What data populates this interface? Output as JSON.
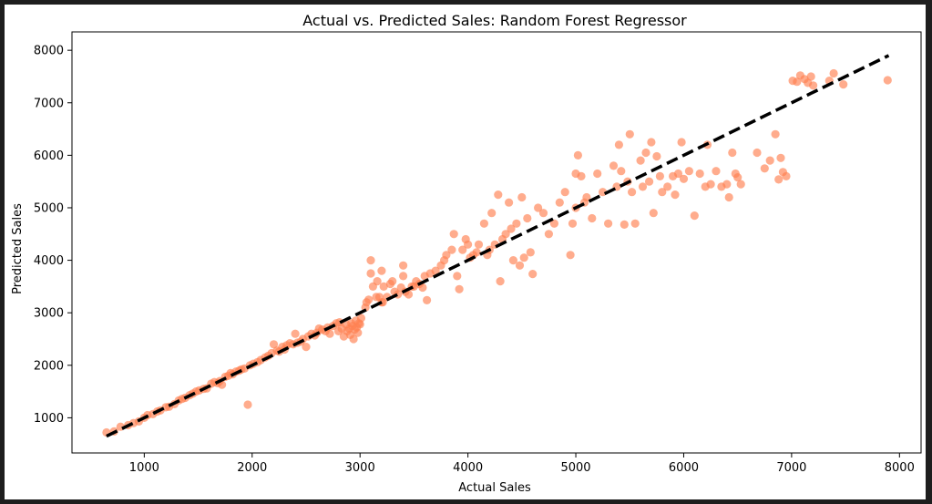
{
  "chart_data": {
    "type": "scatter",
    "title": "Actual vs. Predicted Sales: Random Forest Regressor",
    "xlabel": "Actual Sales",
    "ylabel": "Predicted Sales",
    "xlim": [
      330,
      8200
    ],
    "ylim": [
      330,
      8350
    ],
    "xticks": [
      1000,
      2000,
      3000,
      4000,
      5000,
      6000,
      7000,
      8000
    ],
    "yticks": [
      1000,
      2000,
      3000,
      4000,
      5000,
      6000,
      7000,
      8000
    ],
    "xtick_labels": [
      "1000",
      "2000",
      "3000",
      "4000",
      "5000",
      "6000",
      "7000",
      "8000"
    ],
    "ytick_labels": [
      "1000",
      "2000",
      "3000",
      "4000",
      "5000",
      "6000",
      "7000",
      "8000"
    ],
    "grid": false,
    "point_color": "#ff7f50",
    "point_alpha": 0.65,
    "reference_line": {
      "style": "dashed",
      "color": "#000000",
      "x": [
        650,
        7900
      ],
      "y": [
        650,
        7900
      ]
    },
    "points": [
      [
        650,
        720
      ],
      [
        720,
        740
      ],
      [
        780,
        830
      ],
      [
        850,
        860
      ],
      [
        900,
        900
      ],
      [
        950,
        930
      ],
      [
        1000,
        1000
      ],
      [
        1030,
        1050
      ],
      [
        1080,
        1070
      ],
      [
        1120,
        1120
      ],
      [
        1150,
        1140
      ],
      [
        1200,
        1200
      ],
      [
        1230,
        1210
      ],
      [
        1280,
        1260
      ],
      [
        1320,
        1330
      ],
      [
        1350,
        1360
      ],
      [
        1380,
        1380
      ],
      [
        1420,
        1430
      ],
      [
        1450,
        1460
      ],
      [
        1480,
        1500
      ],
      [
        1510,
        1520
      ],
      [
        1550,
        1550
      ],
      [
        1580,
        1560
      ],
      [
        1620,
        1650
      ],
      [
        1650,
        1680
      ],
      [
        1680,
        1660
      ],
      [
        1700,
        1700
      ],
      [
        1720,
        1630
      ],
      [
        1750,
        1780
      ],
      [
        1780,
        1800
      ],
      [
        1800,
        1850
      ],
      [
        1820,
        1830
      ],
      [
        1850,
        1880
      ],
      [
        1880,
        1900
      ],
      [
        1900,
        1920
      ],
      [
        1930,
        1940
      ],
      [
        1960,
        1250
      ],
      [
        1980,
        2000
      ],
      [
        2010,
        2030
      ],
      [
        2050,
        2060
      ],
      [
        2080,
        2100
      ],
      [
        2120,
        2150
      ],
      [
        2150,
        2180
      ],
      [
        2180,
        2230
      ],
      [
        2200,
        2400
      ],
      [
        2230,
        2280
      ],
      [
        2250,
        2260
      ],
      [
        2280,
        2350
      ],
      [
        2300,
        2300
      ],
      [
        2320,
        2380
      ],
      [
        2350,
        2420
      ],
      [
        2380,
        2400
      ],
      [
        2400,
        2600
      ],
      [
        2420,
        2430
      ],
      [
        2450,
        2450
      ],
      [
        2470,
        2500
      ],
      [
        2500,
        2350
      ],
      [
        2520,
        2550
      ],
      [
        2550,
        2600
      ],
      [
        2580,
        2570
      ],
      [
        2600,
        2620
      ],
      [
        2620,
        2700
      ],
      [
        2650,
        2680
      ],
      [
        2680,
        2650
      ],
      [
        2700,
        2720
      ],
      [
        2720,
        2600
      ],
      [
        2750,
        2750
      ],
      [
        2780,
        2800
      ],
      [
        2800,
        2650
      ],
      [
        2810,
        2820
      ],
      [
        2830,
        2700
      ],
      [
        2850,
        2550
      ],
      [
        2870,
        2780
      ],
      [
        2880,
        2650
      ],
      [
        2900,
        2700
      ],
      [
        2910,
        2580
      ],
      [
        2920,
        2800
      ],
      [
        2930,
        2750
      ],
      [
        2940,
        2500
      ],
      [
        2950,
        2680
      ],
      [
        2960,
        2850
      ],
      [
        2970,
        2720
      ],
      [
        2980,
        2620
      ],
      [
        2990,
        2800
      ],
      [
        3000,
        2780
      ],
      [
        3010,
        2900
      ],
      [
        3050,
        3100
      ],
      [
        3060,
        3200
      ],
      [
        3080,
        3250
      ],
      [
        3100,
        4000
      ],
      [
        3100,
        3750
      ],
      [
        3120,
        3500
      ],
      [
        3150,
        3300
      ],
      [
        3160,
        3600
      ],
      [
        3180,
        3300
      ],
      [
        3200,
        3200
      ],
      [
        3200,
        3800
      ],
      [
        3210,
        3200
      ],
      [
        3220,
        3500
      ],
      [
        3250,
        3300
      ],
      [
        3280,
        3550
      ],
      [
        3300,
        3600
      ],
      [
        3320,
        3400
      ],
      [
        3350,
        3350
      ],
      [
        3380,
        3480
      ],
      [
        3400,
        3700
      ],
      [
        3400,
        3900
      ],
      [
        3420,
        3400
      ],
      [
        3450,
        3350
      ],
      [
        3480,
        3500
      ],
      [
        3500,
        3500
      ],
      [
        3520,
        3600
      ],
      [
        3550,
        3550
      ],
      [
        3580,
        3480
      ],
      [
        3600,
        3700
      ],
      [
        3620,
        3240
      ],
      [
        3650,
        3750
      ],
      [
        3700,
        3800
      ],
      [
        3750,
        3900
      ],
      [
        3780,
        4000
      ],
      [
        3800,
        4100
      ],
      [
        3850,
        4200
      ],
      [
        3870,
        4500
      ],
      [
        3900,
        3700
      ],
      [
        3920,
        3450
      ],
      [
        3950,
        4200
      ],
      [
        3980,
        4400
      ],
      [
        4000,
        4300
      ],
      [
        4020,
        4050
      ],
      [
        4050,
        4100
      ],
      [
        4080,
        4150
      ],
      [
        4100,
        4300
      ],
      [
        4150,
        4700
      ],
      [
        4180,
        4100
      ],
      [
        4200,
        4200
      ],
      [
        4220,
        4900
      ],
      [
        4250,
        4300
      ],
      [
        4280,
        5250
      ],
      [
        4300,
        3600
      ],
      [
        4320,
        4400
      ],
      [
        4350,
        4500
      ],
      [
        4380,
        5100
      ],
      [
        4400,
        4600
      ],
      [
        4420,
        4000
      ],
      [
        4450,
        4700
      ],
      [
        4480,
        3900
      ],
      [
        4500,
        5200
      ],
      [
        4520,
        4050
      ],
      [
        4550,
        4800
      ],
      [
        4580,
        4150
      ],
      [
        4600,
        3740
      ],
      [
        4650,
        5000
      ],
      [
        4700,
        4900
      ],
      [
        4750,
        4500
      ],
      [
        4800,
        4700
      ],
      [
        4850,
        5100
      ],
      [
        4900,
        5300
      ],
      [
        4950,
        4100
      ],
      [
        4970,
        4700
      ],
      [
        5000,
        5000
      ],
      [
        5000,
        5650
      ],
      [
        5020,
        6000
      ],
      [
        5050,
        5600
      ],
      [
        5080,
        5100
      ],
      [
        5100,
        5200
      ],
      [
        5150,
        4800
      ],
      [
        5200,
        5650
      ],
      [
        5250,
        5300
      ],
      [
        5300,
        4700
      ],
      [
        5350,
        5800
      ],
      [
        5380,
        5400
      ],
      [
        5400,
        6200
      ],
      [
        5420,
        5700
      ],
      [
        5450,
        4680
      ],
      [
        5480,
        5500
      ],
      [
        5500,
        6400
      ],
      [
        5520,
        5300
      ],
      [
        5550,
        4700
      ],
      [
        5600,
        5900
      ],
      [
        5620,
        5400
      ],
      [
        5650,
        6050
      ],
      [
        5680,
        5500
      ],
      [
        5700,
        6250
      ],
      [
        5720,
        4900
      ],
      [
        5750,
        5980
      ],
      [
        5780,
        5600
      ],
      [
        5800,
        5300
      ],
      [
        5850,
        5400
      ],
      [
        5900,
        5600
      ],
      [
        5920,
        5250
      ],
      [
        5950,
        5650
      ],
      [
        5980,
        6250
      ],
      [
        6000,
        5550
      ],
      [
        6050,
        5700
      ],
      [
        6100,
        4850
      ],
      [
        6150,
        5650
      ],
      [
        6200,
        5400
      ],
      [
        6220,
        6200
      ],
      [
        6250,
        5450
      ],
      [
        6300,
        5700
      ],
      [
        6350,
        5400
      ],
      [
        6400,
        5450
      ],
      [
        6420,
        5200
      ],
      [
        6450,
        6050
      ],
      [
        6480,
        5650
      ],
      [
        6500,
        5580
      ],
      [
        6530,
        5450
      ],
      [
        6680,
        6050
      ],
      [
        6750,
        5750
      ],
      [
        6800,
        5900
      ],
      [
        6850,
        6400
      ],
      [
        6880,
        5540
      ],
      [
        6900,
        5950
      ],
      [
        6920,
        5680
      ],
      [
        6950,
        5600
      ],
      [
        7010,
        7420
      ],
      [
        7050,
        7400
      ],
      [
        7080,
        7520
      ],
      [
        7120,
        7450
      ],
      [
        7150,
        7380
      ],
      [
        7180,
        7500
      ],
      [
        7200,
        7330
      ],
      [
        7350,
        7420
      ],
      [
        7390,
        7560
      ],
      [
        7480,
        7350
      ],
      [
        7890,
        7430
      ]
    ]
  }
}
